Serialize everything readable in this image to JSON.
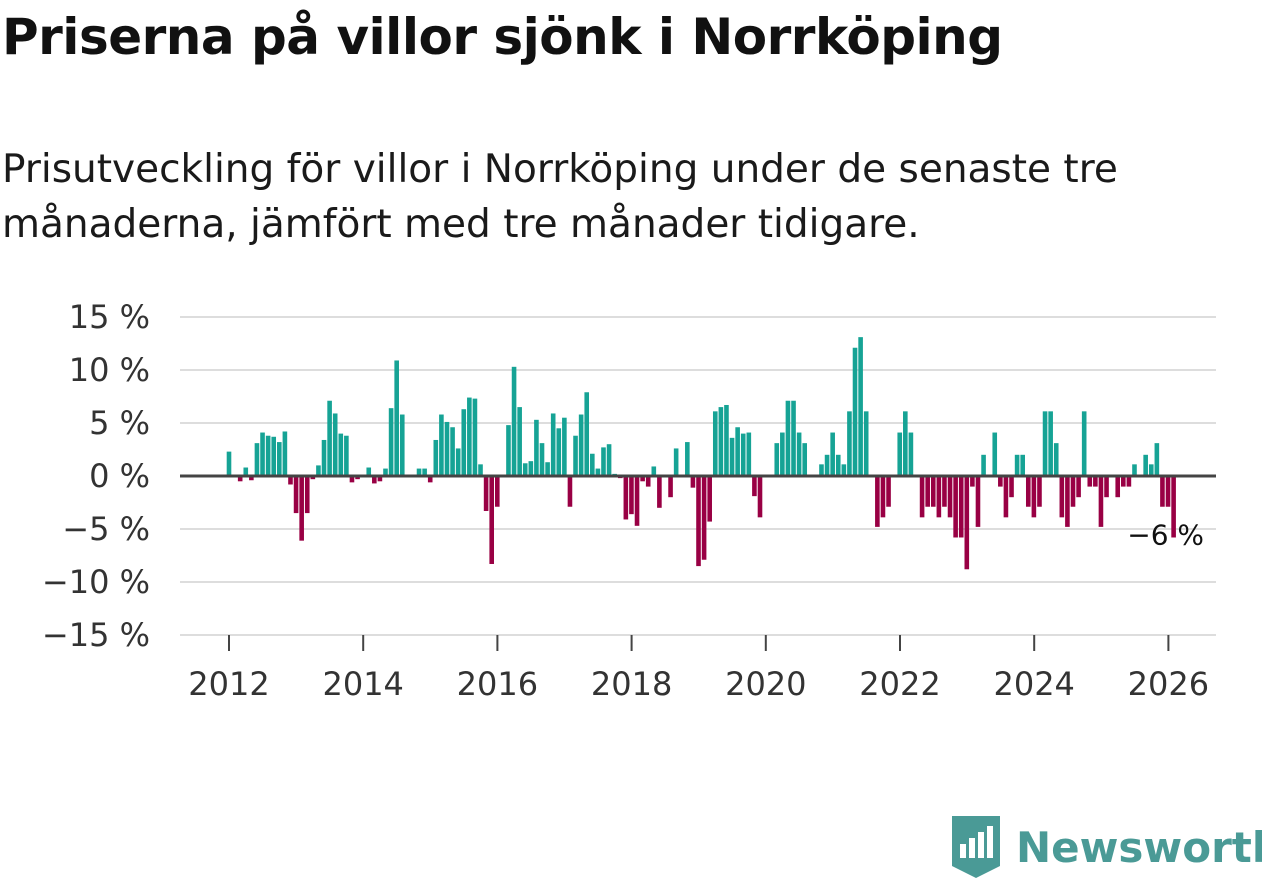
{
  "title": "Priserna på villor sjönk i Norrköping",
  "subtitle": "Prisutveckling för villor i Norrköping under de senaste tre månaderna, jämfört med tre månader tidigare.",
  "brand": {
    "name": "Newsworthy",
    "icon": "newsworthy-logo-icon"
  },
  "colors": {
    "positive": "#16a395",
    "negative": "#990044",
    "grid": "#dddddd",
    "zero": "#444444"
  },
  "chart_data": {
    "type": "bar",
    "title": "Priserna på villor sjönk i Norrköping",
    "xlabel": "",
    "ylabel": "",
    "ylim": [
      -15,
      15
    ],
    "y_ticks": [
      15,
      10,
      5,
      0,
      -5,
      -10,
      -15
    ],
    "y_tick_labels": [
      "15 %",
      "10 %",
      "5 %",
      "0 %",
      "−5 %",
      "−10 %",
      "−15 %"
    ],
    "x_ticks": [
      2012,
      2014,
      2016,
      2018,
      2020,
      2022,
      2024,
      2026
    ],
    "x_tick_labels": [
      "2012",
      "2014",
      "2016",
      "2018",
      "2020",
      "2022",
      "2024",
      "2026"
    ],
    "x_start": 2012.0,
    "x_step": 0.0833,
    "grid": true,
    "annotation": {
      "text": "−6 %",
      "index": 168
    },
    "values": [
      2.3,
      0,
      -0.5,
      0.8,
      -0.4,
      3.1,
      4.1,
      3.8,
      3.7,
      3.2,
      4.2,
      -0.8,
      -3.5,
      -6.1,
      -3.5,
      -0.3,
      1,
      3.4,
      7.1,
      5.9,
      4,
      3.8,
      -0.6,
      -0.3,
      0,
      0.8,
      -0.7,
      -0.5,
      0.7,
      6.4,
      10.9,
      5.8,
      0,
      0,
      0.7,
      0.7,
      -0.6,
      3.4,
      5.8,
      5.1,
      4.6,
      2.6,
      6.3,
      7.4,
      7.3,
      1.1,
      -3.3,
      -8.3,
      -2.9,
      0,
      4.8,
      10.3,
      6.5,
      1.2,
      1.4,
      5.3,
      3.1,
      1.3,
      5.9,
      4.5,
      5.5,
      -2.9,
      3.8,
      5.8,
      7.9,
      2.1,
      0.7,
      2.7,
      3,
      0.2,
      -0.2,
      -4.1,
      -3.6,
      -4.7,
      -0.5,
      -1,
      0.9,
      -3,
      0,
      -2,
      2.6,
      0,
      3.2,
      -1.1,
      -8.5,
      -7.9,
      -4.3,
      6.1,
      6.5,
      6.7,
      3.6,
      4.6,
      4,
      4.1,
      -1.9,
      -3.9,
      0,
      0,
      3.1,
      4.1,
      7.1,
      7.1,
      4.1,
      3.1,
      0,
      0,
      1.1,
      2,
      4.1,
      2,
      1.1,
      6.1,
      12.1,
      13.1,
      6.1,
      0,
      -4.8,
      -3.9,
      -2.9,
      0,
      4.1,
      6.1,
      4.1,
      0,
      -3.9,
      -2.9,
      -2.9,
      -3.9,
      -2.9,
      -3.9,
      -5.8,
      -5.8,
      -8.8,
      -1,
      -4.8,
      2,
      0,
      4.1,
      -1,
      -3.9,
      -2,
      2,
      2,
      -2.9,
      -3.9,
      -2.9,
      6.1,
      6.1,
      3.1,
      -3.9,
      -4.8,
      -2.9,
      -2,
      6.1,
      -1,
      -1,
      -4.8,
      -2,
      0,
      -2,
      -1,
      -1,
      1.1,
      0,
      2,
      1.1,
      3.1,
      -2.9,
      -2.9,
      -5.8
    ]
  }
}
